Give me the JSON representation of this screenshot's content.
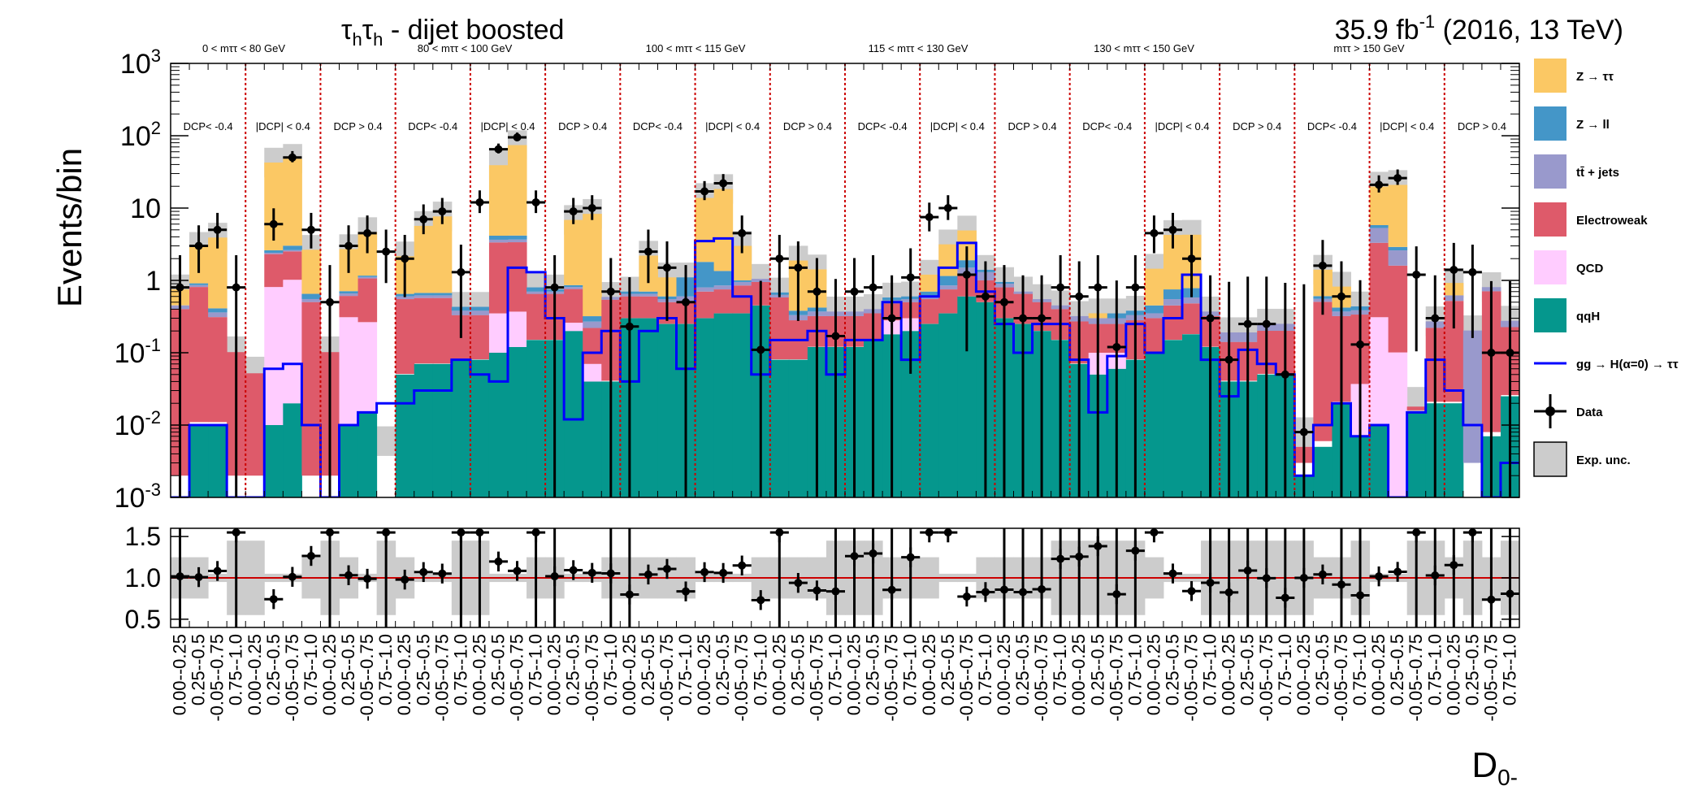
{
  "chart_data": {
    "type": "bar",
    "stacked": true,
    "log_y": true,
    "title": "τhτh - dijet boosted",
    "luminosity": "35.9 fb-1 (2016, 13 TeV)",
    "ylabel": "Events/bin",
    "xlabel": "D0-",
    "ylim": [
      0.001,
      1000
    ],
    "y_ticks": [
      "10-3",
      "10-2",
      "10-1",
      "1",
      "10",
      "102",
      "103"
    ],
    "ratio_ylim": [
      0.4,
      1.6
    ],
    "ratio_ticks": [
      "0.5",
      "1.0",
      "1.5"
    ],
    "mass_windows": [
      "0 < mττ < 80 GeV",
      "80 < mττ < 100 GeV",
      "100 < mττ < 115 GeV",
      "115 < mττ < 130 GeV",
      "130 < mττ < 150 GeV",
      "mττ > 150 GeV"
    ],
    "dcp_regions": [
      "DCP< -0.4",
      "|DCP| < 0.4",
      "DCP > 0.4"
    ],
    "bin_labels_pattern": [
      "0.00--0.25",
      "0.25--0.5",
      "-0.05--0.75",
      "0.75--1.0"
    ],
    "n_bins": 72,
    "grid": false,
    "legend_position": "right",
    "legend": [
      {
        "name": "Z → ττ",
        "color": "#FBC864",
        "kind": "fill"
      },
      {
        "name": "Z → ll",
        "color": "#4496C8",
        "kind": "fill"
      },
      {
        "name": "tt̄ + jets",
        "color": "#9999CC",
        "kind": "fill"
      },
      {
        "name": "Electroweak",
        "color": "#DE5A6A",
        "kind": "fill"
      },
      {
        "name": "QCD",
        "color": "#FFCCFF",
        "kind": "fill"
      },
      {
        "name": "qqH",
        "color": "#05978D",
        "kind": "fill"
      },
      {
        "name": "gg → H(α=0) → ττ",
        "color": "#0000FF",
        "kind": "line"
      },
      {
        "name": "Data",
        "color": "#000000",
        "kind": "marker"
      },
      {
        "name": "Exp. unc.",
        "color": "#CCCCCC",
        "kind": "box"
      }
    ],
    "series": [
      {
        "name": "qqH",
        "values": [
          0.001,
          0.01,
          0.01,
          0.001,
          0.001,
          0.01,
          0.02,
          0.001,
          0.001,
          0.01,
          0.015,
          0.001,
          0.05,
          0.07,
          0.07,
          0.08,
          0.08,
          0.1,
          0.12,
          0.15,
          0.15,
          0.2,
          0.04,
          0.04,
          0.3,
          0.3,
          0.25,
          0.25,
          0.3,
          0.35,
          0.35,
          0.45,
          0.08,
          0.08,
          0.12,
          0.12,
          0.12,
          0.15,
          0.18,
          0.2,
          0.25,
          0.35,
          0.6,
          0.5,
          0.3,
          0.25,
          0.2,
          0.15,
          0.07,
          0.05,
          0.06,
          0.08,
          0.1,
          0.15,
          0.18,
          0.12,
          0.04,
          0.04,
          0.05,
          0.05,
          0.002,
          0.005,
          0.02,
          0.007,
          0.01,
          0.001,
          0.015,
          0.02,
          0.02,
          0.001,
          0.007,
          0.025
        ]
      },
      {
        "name": "QCD",
        "values": [
          0.001,
          0.001,
          0.001,
          0.001,
          0.001,
          0.8,
          1.0,
          0.001,
          0.001,
          0.3,
          0.25,
          0.001,
          0.001,
          0.001,
          0.001,
          0.001,
          0.001,
          0.25,
          0.25,
          0.001,
          0.001,
          0.06,
          0.03,
          0.001,
          0.001,
          0.001,
          0.001,
          0.001,
          0.001,
          0.001,
          0.001,
          0.001,
          0.001,
          0.001,
          0.001,
          0.001,
          0.001,
          0.001,
          0.1,
          0.1,
          0.001,
          0.001,
          0.001,
          0.001,
          0.001,
          0.001,
          0.001,
          0.001,
          0.001,
          0.05,
          0.04,
          0.001,
          0.001,
          0.001,
          0.001,
          0.001,
          0.001,
          0.001,
          0.001,
          0.001,
          0.001,
          0.001,
          0.001,
          0.03,
          0.3,
          0.1,
          0.001,
          0.001,
          0.001,
          0.001,
          0.001,
          0.001
        ]
      },
      {
        "name": "Electroweak",
        "values": [
          0.4,
          0.8,
          0.3,
          0.1,
          0.05,
          1.5,
          1.5,
          0.5,
          0.1,
          0.3,
          0.8,
          0.001,
          0.5,
          0.5,
          0.5,
          0.25,
          0.25,
          3.0,
          3.0,
          0.5,
          0.5,
          0.5,
          0.15,
          0.5,
          0.3,
          0.3,
          0.25,
          0.25,
          0.4,
          0.4,
          0.5,
          0.5,
          0.5,
          0.2,
          0.2,
          0.2,
          0.2,
          0.2,
          0.2,
          0.2,
          0.3,
          0.4,
          0.6,
          0.5,
          0.5,
          0.4,
          0.3,
          0.25,
          0.2,
          0.15,
          0.15,
          0.2,
          0.2,
          0.3,
          0.3,
          0.2,
          0.1,
          0.1,
          0.15,
          0.15,
          0.002,
          0.5,
          0.3,
          0.3,
          3.0,
          1.5,
          0.002,
          0.2,
          0.5,
          0.001,
          0.7,
          0.2
        ]
      },
      {
        "name": "tt̄ + jets",
        "values": [
          0.05,
          0.05,
          0.05,
          0.001,
          0.001,
          0.1,
          0.1,
          0.05,
          0.001,
          0.05,
          0.05,
          0.001,
          0.05,
          0.05,
          0.05,
          0.05,
          0.05,
          0.3,
          0.3,
          0.05,
          0.05,
          0.05,
          0.05,
          0.05,
          0.05,
          0.05,
          0.05,
          0.1,
          0.1,
          0.1,
          0.1,
          0.1,
          0.05,
          0.05,
          0.05,
          0.05,
          0.05,
          0.05,
          0.05,
          0.05,
          0.05,
          0.1,
          0.3,
          0.3,
          0.1,
          0.05,
          0.05,
          0.05,
          0.05,
          0.05,
          0.05,
          0.05,
          0.05,
          0.1,
          0.1,
          0.05,
          0.05,
          0.05,
          0.05,
          0.05,
          0.001,
          0.05,
          0.05,
          0.05,
          2.0,
          1.0,
          0.001,
          0.05,
          0.1,
          0.2,
          0.1,
          0.05
        ]
      },
      {
        "name": "Z → ll",
        "values": [
          0.001,
          0.05,
          0.05,
          0.001,
          0.001,
          0.2,
          0.4,
          0.1,
          0.001,
          0.05,
          0.05,
          0.001,
          0.05,
          0.05,
          0.05,
          0.05,
          0.05,
          0.5,
          0.5,
          0.1,
          0.05,
          0.05,
          0.05,
          0.001,
          0.05,
          0.05,
          0.05,
          0.5,
          1.0,
          0.5,
          0.05,
          0.001,
          0.05,
          0.05,
          0.05,
          0.001,
          0.001,
          0.001,
          0.05,
          0.05,
          0.1,
          0.3,
          0.4,
          0.1,
          0.05,
          0.001,
          0.001,
          0.001,
          0.001,
          0.001,
          0.05,
          0.05,
          0.1,
          0.2,
          0.2,
          0.001,
          0.001,
          0.001,
          0.001,
          0.001,
          0.001,
          0.05,
          0.05,
          0.05,
          0.5,
          0.3,
          0.001,
          0.001,
          0.001,
          0.001,
          0.001,
          0.001
        ]
      },
      {
        "name": "Z → ττ",
        "values": [
          0.3,
          2.0,
          3.5,
          0.001,
          0.001,
          40,
          45,
          2.0,
          0.001,
          2.0,
          3.5,
          0.001,
          1.5,
          5.0,
          7.0,
          0.001,
          0.001,
          35,
          70,
          0.001,
          0.001,
          6.0,
          8.0,
          0.001,
          0.001,
          1.5,
          0.5,
          0.001,
          12,
          17,
          2.0,
          0.001,
          0.001,
          1.5,
          1.0,
          0.001,
          0.001,
          0.001,
          0.001,
          0.001,
          0.5,
          2.0,
          3.0,
          0.001,
          0.001,
          0.001,
          0.001,
          0.001,
          0.001,
          0.05,
          0.001,
          0.001,
          1.0,
          3.5,
          3.5,
          0.001,
          0.001,
          0.001,
          0.001,
          0.001,
          0.001,
          0.8,
          0.4,
          0.001,
          14,
          18,
          0.001,
          0.001,
          0.3,
          0.001,
          0.001,
          0.001
        ]
      },
      {
        "name": "gg → H(α=0) → ττ",
        "values": [
          0.001,
          0.01,
          0.01,
          0.001,
          0.001,
          0.06,
          0.07,
          0.01,
          0.001,
          0.01,
          0.015,
          0.02,
          0.02,
          0.03,
          0.03,
          0.08,
          0.05,
          0.04,
          1.5,
          1.3,
          0.3,
          0.012,
          0.1,
          0.2,
          0.04,
          0.2,
          0.3,
          0.06,
          3.5,
          3.8,
          0.6,
          0.05,
          0.15,
          0.15,
          0.2,
          0.05,
          0.15,
          0.15,
          0.5,
          0.08,
          0.6,
          1.5,
          3.3,
          0.7,
          0.25,
          0.1,
          0.25,
          0.25,
          0.08,
          0.015,
          0.09,
          0.25,
          0.1,
          0.3,
          1.2,
          0.08,
          0.025,
          0.11,
          0.07,
          0.05,
          0.002,
          0.01,
          0.02,
          0.007,
          0.01,
          0.001,
          0.015,
          0.08,
          0.03,
          0.01,
          0.001,
          0.003
        ]
      },
      {
        "name": "Data",
        "values": [
          0.8,
          3.0,
          5.0,
          0.8,
          0.001,
          6.0,
          50,
          5.0,
          0.5,
          3.0,
          4.5,
          2.5,
          2.0,
          7.0,
          9.0,
          1.3,
          12,
          65,
          95,
          12,
          0.8,
          9.0,
          10,
          0.7,
          0.23,
          2.5,
          1.5,
          0.5,
          17,
          22,
          4.5,
          0.11,
          2.0,
          1.5,
          0.7,
          0.17,
          0.7,
          0.8,
          0.3,
          1.1,
          7.5,
          10,
          1.2,
          0.6,
          0.5,
          0.3,
          0.3,
          0.8,
          0.6,
          0.8,
          0.12,
          0.8,
          4.5,
          5.0,
          2.0,
          0.3,
          0.08,
          0.25,
          0.25,
          0.05,
          0.008,
          1.6,
          0.6,
          0.13,
          21,
          26,
          1.2,
          0.3,
          1.4,
          1.3,
          0.1,
          0.1
        ]
      }
    ]
  }
}
